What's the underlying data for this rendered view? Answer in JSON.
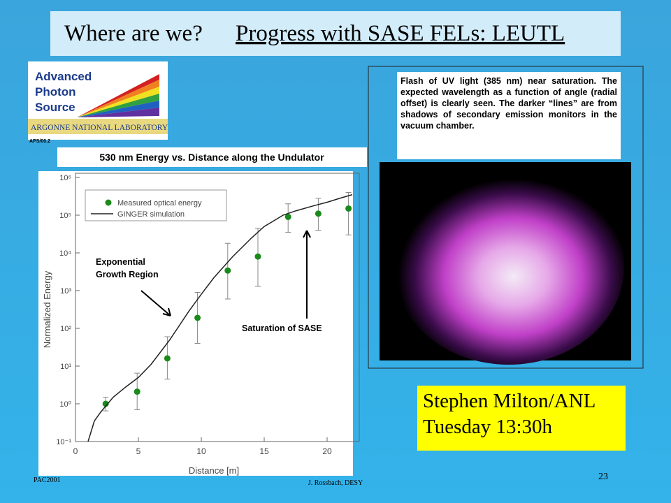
{
  "slide": {
    "title_plain": "Where are we?",
    "title_underlined": "Progress with SASE FELs: LEUTL",
    "logo": {
      "line1": "Advanced",
      "line2": "Photon",
      "line3": "Source",
      "lab": "ARGONNE NATIONAL LABORATORY",
      "code": "APS/00.2"
    },
    "caption": "Flash of UV light (385 nm) near saturation. The expected wavelength as a function of angle (radial offset) is clearly seen. The darker “lines” are from shadows of secondary emission monitors in the vacuum chamber.",
    "speaker": {
      "name": "Stephen Milton/ANL",
      "time": "Tuesday 13:30h"
    },
    "footer": {
      "left": "PAC2001",
      "center": "J. Rossbach, DESY",
      "page": "23"
    }
  },
  "chart_data": {
    "type": "scatter",
    "title": "530 nm Energy vs. Distance along the Undulator",
    "x_label": "Distance [m]",
    "y_label": "Normalized Energy",
    "y_scale": "log",
    "xlim": [
      0,
      22
    ],
    "ylim": [
      0.1,
      1000000
    ],
    "xticks": [
      0,
      5,
      10,
      15,
      20
    ],
    "yticks": [
      {
        "value": 0.1,
        "label": "10⁻¹"
      },
      {
        "value": 1,
        "label": "10⁰"
      },
      {
        "value": 10,
        "label": "10¹"
      },
      {
        "value": 100,
        "label": "10²"
      },
      {
        "value": 1000,
        "label": "10³"
      },
      {
        "value": 10000,
        "label": "10⁴"
      },
      {
        "value": 100000,
        "label": "10⁵"
      },
      {
        "value": 1000000,
        "label": "10⁶"
      }
    ],
    "legend": "top-left",
    "series": [
      {
        "name": "Measured optical energy",
        "color": "#1a8a1a",
        "x": [
          2.4,
          4.9,
          7.3,
          9.7,
          12.1,
          14.5,
          16.9,
          19.3,
          21.7
        ],
        "values": [
          1.0,
          2.1,
          16,
          190,
          3400,
          8000,
          90000,
          110000,
          150000
        ],
        "lower": [
          0.65,
          0.7,
          4.5,
          40,
          600,
          1300,
          35000,
          40000,
          30000
        ],
        "upper": [
          1.5,
          6.5,
          60,
          900,
          18000,
          45000,
          200000,
          280000,
          400000
        ]
      },
      {
        "name": "GINGER simulation",
        "color": "#222222",
        "kind": "line",
        "x": [
          1,
          1.5,
          2,
          3,
          4,
          5,
          6,
          7.5,
          9,
          10,
          11,
          12.5,
          14,
          15,
          16.5,
          17.5,
          19,
          20,
          21,
          22
        ],
        "values": [
          0.1,
          0.35,
          0.6,
          1.5,
          2.8,
          5,
          11,
          50,
          280,
          800,
          2200,
          8000,
          25000,
          50000,
          100000,
          130000,
          180000,
          220000,
          280000,
          350000
        ]
      }
    ],
    "annotations": [
      "Exponential Growth Region",
      "Saturation of SASE"
    ]
  }
}
